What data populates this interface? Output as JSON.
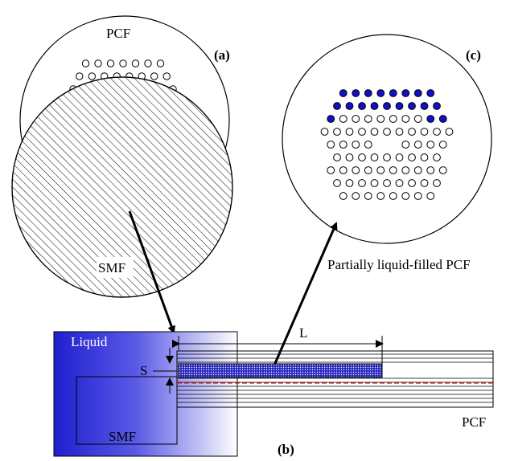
{
  "labels": {
    "pcf_top": "PCF",
    "panel_a": "(a)",
    "smf_top": "SMF",
    "panel_c": "(c)",
    "partially_filled": "Partially liquid-filled PCF",
    "liquid": "Liquid",
    "length_l": "L",
    "offset_s": "S",
    "smf_bottom": "SMF",
    "pcf_bottom": "PCF",
    "panel_b": "(b)"
  },
  "colors": {
    "liquid_dark": "#2a2ad6",
    "liquid_light": "#ffffff",
    "filled_hole": "#1010c8",
    "empty_hole": "#ffffff",
    "core_line": "#cc2222",
    "stroke": "#000000"
  }
}
